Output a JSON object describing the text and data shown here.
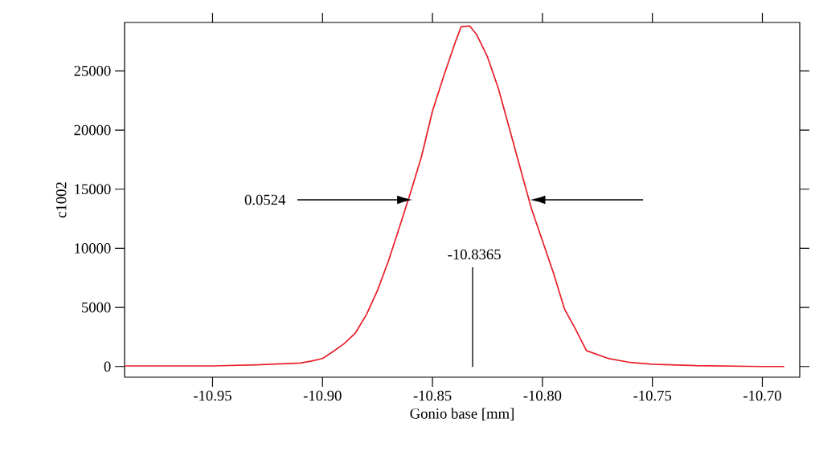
{
  "chart_data": {
    "type": "line",
    "xlabel": "Gonio base [mm]",
    "ylabel": "c1002",
    "xlim": [
      -10.99,
      -10.683
    ],
    "ylim": [
      -900,
      29100
    ],
    "xticks": [
      -10.95,
      {
        "value": -10.9,
        "label": "-10.90"
      },
      -10.85,
      {
        "value": -10.8,
        "label": "-10.80"
      },
      -10.75,
      {
        "value": -10.7,
        "label": "-10.70"
      }
    ],
    "yticks": [
      0,
      5000,
      10000,
      15000,
      20000,
      25000
    ],
    "annotations": [
      "0.0524",
      "-10.8365"
    ],
    "series": [
      {
        "color": "#e8202a",
        "x": [
          -10.99,
          -10.95,
          -10.93,
          -10.91,
          -10.905,
          -10.9,
          -10.895,
          -10.89,
          -10.885,
          -10.88,
          -10.875,
          -10.87,
          -10.865,
          -10.86,
          -10.855,
          -10.85,
          -10.845,
          -10.84,
          -10.837,
          -10.833,
          -10.83,
          -10.825,
          -10.82,
          -10.815,
          -10.81,
          -10.805,
          -10.8,
          -10.795,
          -10.79,
          -10.785,
          -10.78,
          -10.77,
          -10.76,
          -10.75,
          -10.73,
          -10.7,
          -10.69
        ],
        "values": [
          50,
          50,
          150,
          300,
          470,
          680,
          1290,
          1960,
          2850,
          4400,
          6440,
          8940,
          11790,
          14700,
          17750,
          21600,
          24500,
          27240,
          28730,
          28800,
          28100,
          26200,
          23500,
          20120,
          16730,
          13350,
          10640,
          7930,
          4880,
          3180,
          1350,
          680,
          340,
          200,
          70,
          0,
          0
        ]
      }
    ]
  }
}
